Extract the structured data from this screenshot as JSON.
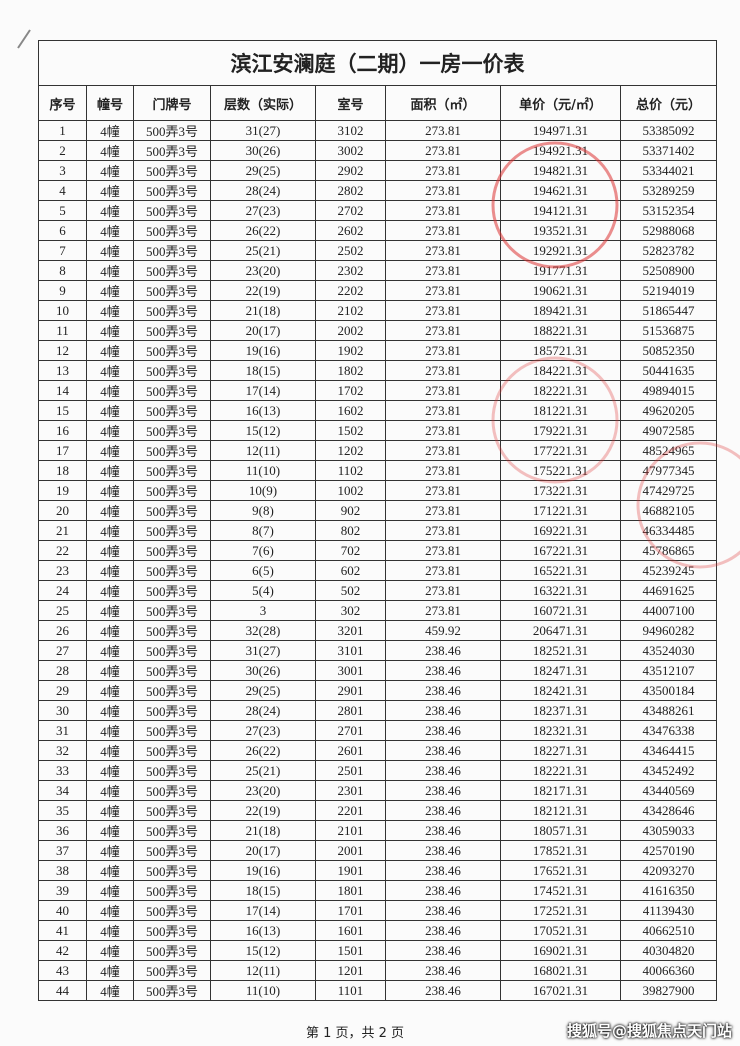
{
  "header": {
    "title": "滨江安澜庭（二期）一房一价表"
  },
  "table": {
    "columns": [
      "序号",
      "幢号",
      "门牌号",
      "层数（实际）",
      "室号",
      "面积（㎡）",
      "单价（元/㎡）",
      "总价（元）"
    ],
    "rows": [
      [
        "1",
        "4幢",
        "500弄3号",
        "31(27)",
        "3102",
        "273.81",
        "194971.31",
        "53385092"
      ],
      [
        "2",
        "4幢",
        "500弄3号",
        "30(26)",
        "3002",
        "273.81",
        "194921.31",
        "53371402"
      ],
      [
        "3",
        "4幢",
        "500弄3号",
        "29(25)",
        "2902",
        "273.81",
        "194821.31",
        "53344021"
      ],
      [
        "4",
        "4幢",
        "500弄3号",
        "28(24)",
        "2802",
        "273.81",
        "194621.31",
        "53289259"
      ],
      [
        "5",
        "4幢",
        "500弄3号",
        "27(23)",
        "2702",
        "273.81",
        "194121.31",
        "53152354"
      ],
      [
        "6",
        "4幢",
        "500弄3号",
        "26(22)",
        "2602",
        "273.81",
        "193521.31",
        "52988068"
      ],
      [
        "7",
        "4幢",
        "500弄3号",
        "25(21)",
        "2502",
        "273.81",
        "192921.31",
        "52823782"
      ],
      [
        "8",
        "4幢",
        "500弄3号",
        "23(20)",
        "2302",
        "273.81",
        "191771.31",
        "52508900"
      ],
      [
        "9",
        "4幢",
        "500弄3号",
        "22(19)",
        "2202",
        "273.81",
        "190621.31",
        "52194019"
      ],
      [
        "10",
        "4幢",
        "500弄3号",
        "21(18)",
        "2102",
        "273.81",
        "189421.31",
        "51865447"
      ],
      [
        "11",
        "4幢",
        "500弄3号",
        "20(17)",
        "2002",
        "273.81",
        "188221.31",
        "51536875"
      ],
      [
        "12",
        "4幢",
        "500弄3号",
        "19(16)",
        "1902",
        "273.81",
        "185721.31",
        "50852350"
      ],
      [
        "13",
        "4幢",
        "500弄3号",
        "18(15)",
        "1802",
        "273.81",
        "184221.31",
        "50441635"
      ],
      [
        "14",
        "4幢",
        "500弄3号",
        "17(14)",
        "1702",
        "273.81",
        "182221.31",
        "49894015"
      ],
      [
        "15",
        "4幢",
        "500弄3号",
        "16(13)",
        "1602",
        "273.81",
        "181221.31",
        "49620205"
      ],
      [
        "16",
        "4幢",
        "500弄3号",
        "15(12)",
        "1502",
        "273.81",
        "179221.31",
        "49072585"
      ],
      [
        "17",
        "4幢",
        "500弄3号",
        "12(11)",
        "1202",
        "273.81",
        "177221.31",
        "48524965"
      ],
      [
        "18",
        "4幢",
        "500弄3号",
        "11(10)",
        "1102",
        "273.81",
        "175221.31",
        "47977345"
      ],
      [
        "19",
        "4幢",
        "500弄3号",
        "10(9)",
        "1002",
        "273.81",
        "173221.31",
        "47429725"
      ],
      [
        "20",
        "4幢",
        "500弄3号",
        "9(8)",
        "902",
        "273.81",
        "171221.31",
        "46882105"
      ],
      [
        "21",
        "4幢",
        "500弄3号",
        "8(7)",
        "802",
        "273.81",
        "169221.31",
        "46334485"
      ],
      [
        "22",
        "4幢",
        "500弄3号",
        "7(6)",
        "702",
        "273.81",
        "167221.31",
        "45786865"
      ],
      [
        "23",
        "4幢",
        "500弄3号",
        "6(5)",
        "602",
        "273.81",
        "165221.31",
        "45239245"
      ],
      [
        "24",
        "4幢",
        "500弄3号",
        "5(4)",
        "502",
        "273.81",
        "163221.31",
        "44691625"
      ],
      [
        "25",
        "4幢",
        "500弄3号",
        "3",
        "302",
        "273.81",
        "160721.31",
        "44007100"
      ],
      [
        "26",
        "4幢",
        "500弄3号",
        "32(28)",
        "3201",
        "459.92",
        "206471.31",
        "94960282"
      ],
      [
        "27",
        "4幢",
        "500弄3号",
        "31(27)",
        "3101",
        "238.46",
        "182521.31",
        "43524030"
      ],
      [
        "28",
        "4幢",
        "500弄3号",
        "30(26)",
        "3001",
        "238.46",
        "182471.31",
        "43512107"
      ],
      [
        "29",
        "4幢",
        "500弄3号",
        "29(25)",
        "2901",
        "238.46",
        "182421.31",
        "43500184"
      ],
      [
        "30",
        "4幢",
        "500弄3号",
        "28(24)",
        "2801",
        "238.46",
        "182371.31",
        "43488261"
      ],
      [
        "31",
        "4幢",
        "500弄3号",
        "27(23)",
        "2701",
        "238.46",
        "182321.31",
        "43476338"
      ],
      [
        "32",
        "4幢",
        "500弄3号",
        "26(22)",
        "2601",
        "238.46",
        "182271.31",
        "43464415"
      ],
      [
        "33",
        "4幢",
        "500弄3号",
        "25(21)",
        "2501",
        "238.46",
        "182221.31",
        "43452492"
      ],
      [
        "34",
        "4幢",
        "500弄3号",
        "23(20)",
        "2301",
        "238.46",
        "182171.31",
        "43440569"
      ],
      [
        "35",
        "4幢",
        "500弄3号",
        "22(19)",
        "2201",
        "238.46",
        "182121.31",
        "43428646"
      ],
      [
        "36",
        "4幢",
        "500弄3号",
        "21(18)",
        "2101",
        "238.46",
        "180571.31",
        "43059033"
      ],
      [
        "37",
        "4幢",
        "500弄3号",
        "20(17)",
        "2001",
        "238.46",
        "178521.31",
        "42570190"
      ],
      [
        "38",
        "4幢",
        "500弄3号",
        "19(16)",
        "1901",
        "238.46",
        "176521.31",
        "42093270"
      ],
      [
        "39",
        "4幢",
        "500弄3号",
        "18(15)",
        "1801",
        "238.46",
        "174521.31",
        "41616350"
      ],
      [
        "40",
        "4幢",
        "500弄3号",
        "17(14)",
        "1701",
        "238.46",
        "172521.31",
        "41139430"
      ],
      [
        "41",
        "4幢",
        "500弄3号",
        "16(13)",
        "1601",
        "238.46",
        "170521.31",
        "40662510"
      ],
      [
        "42",
        "4幢",
        "500弄3号",
        "15(12)",
        "1501",
        "238.46",
        "169021.31",
        "40304820"
      ],
      [
        "43",
        "4幢",
        "500弄3号",
        "12(11)",
        "1201",
        "238.46",
        "168021.31",
        "40066360"
      ],
      [
        "44",
        "4幢",
        "500弄3号",
        "11(10)",
        "1101",
        "238.46",
        "167021.31",
        "39827900"
      ]
    ]
  },
  "footer": {
    "page": "第 1 页，共 2 页",
    "watermark": "搜狐号@搜狐焦点天门站"
  }
}
